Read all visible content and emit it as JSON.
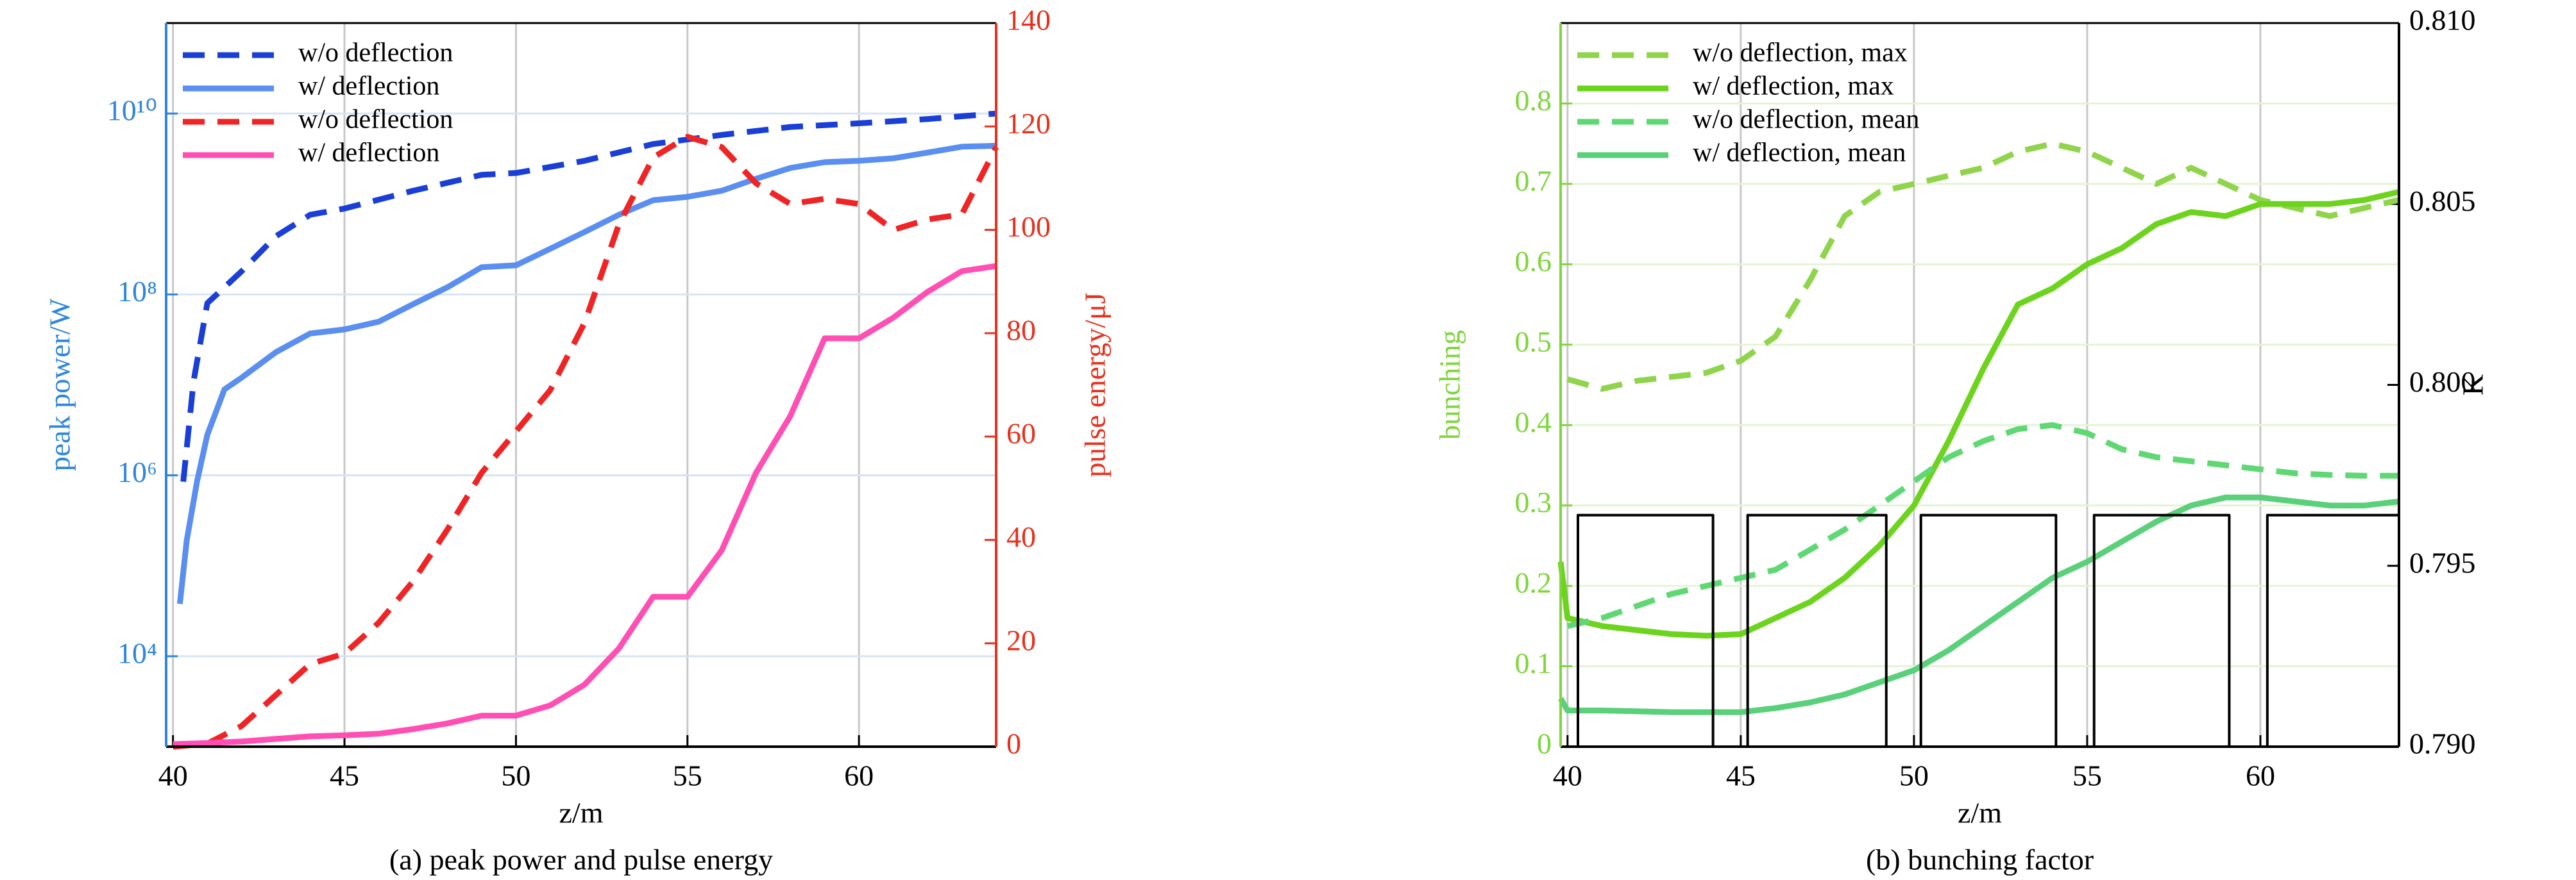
{
  "chart_data": [
    {
      "type": "line",
      "caption": "(a) peak power and pulse energy",
      "xlabel": "z/m",
      "ylabel": "peak power/W",
      "y2label": "pulse energy/μJ",
      "xlim": [
        39.8,
        64
      ],
      "xticks": [
        40,
        45,
        50,
        55,
        60
      ],
      "ylim": [
        1000,
        100000000000
      ],
      "ylog": true,
      "yticks": [
        {
          "value": 10000,
          "label": "10⁴"
        },
        {
          "value": 1000000,
          "label": "10⁶"
        },
        {
          "value": 100000000,
          "label": "10⁸"
        },
        {
          "value": 10000000000,
          "label": "10¹⁰"
        }
      ],
      "y2lim": [
        0,
        140
      ],
      "y2ticks": [
        0,
        20,
        40,
        60,
        80,
        100,
        120,
        140
      ],
      "ycolor": "#2e86de",
      "y2color": "#e8301c",
      "grid": true,
      "gridcolor": "#d6e4f5",
      "legend": "upper left",
      "series": [
        {
          "name": "w/o deflection",
          "color": "#1a3fd6",
          "dashed": true,
          "x": [
            40.3,
            40.6,
            41,
            42,
            43,
            44,
            45,
            47,
            49,
            50,
            52,
            54,
            56,
            58,
            60,
            62,
            64
          ],
          "values": [
            850000,
            11000000,
            80000000,
            180000000,
            440000000,
            760000000,
            890000000,
            1400000000,
            2100000000,
            2200000000,
            3000000000,
            4600000000,
            5800000000,
            7100000000,
            7800000000,
            8700000000,
            10000000000
          ]
        },
        {
          "name": "w/ deflection",
          "color": "#5a8ef0",
          "dashed": false,
          "x": [
            40.2,
            40.4,
            40.7,
            41,
            41.5,
            42,
            43,
            44,
            45,
            46,
            47,
            48,
            49,
            50,
            51,
            52,
            53,
            54,
            55,
            56,
            57,
            58,
            59,
            60,
            61,
            62,
            63,
            64
          ],
          "values": [
            38000,
            190000,
            850000,
            2800000,
            8900000,
            12000000,
            23000000,
            37000000,
            41000000,
            50000000,
            78000000,
            120000000,
            200000000,
            210000000,
            320000000,
            490000000,
            760000000,
            1100000000,
            1200000000,
            1400000000,
            1900000000,
            2500000000,
            2900000000,
            3000000000,
            3200000000,
            3700000000,
            4300000000,
            4400000000
          ]
        },
        {
          "name": "w/o deflection",
          "color": "#f02424",
          "dashed": true,
          "axis": "y2",
          "x": [
            40,
            41,
            42,
            43,
            44,
            45,
            46,
            47,
            48,
            49,
            50,
            51,
            52,
            53,
            54,
            55,
            56,
            57,
            58,
            59,
            60,
            61,
            62,
            63,
            64
          ],
          "values": [
            0,
            0.6,
            4,
            10,
            16,
            18,
            24,
            32,
            42,
            53,
            61,
            69,
            82,
            101,
            114,
            118,
            116,
            109,
            105,
            106,
            105,
            100,
            102,
            103,
            116
          ]
        },
        {
          "name": "w/ deflection",
          "color": "#ff4fb4",
          "dashed": false,
          "axis": "y2",
          "x": [
            40,
            41,
            42,
            43,
            44,
            45,
            46,
            47,
            48,
            49,
            50,
            51,
            52,
            53,
            54,
            55,
            56,
            57,
            58,
            59,
            60,
            61,
            62,
            63,
            64
          ],
          "values": [
            0.5,
            0.7,
            1,
            1.5,
            2,
            2.2,
            2.5,
            3.4,
            4.5,
            6,
            6,
            8,
            12,
            19,
            29,
            29,
            38,
            53,
            64,
            79,
            79,
            83,
            88,
            92,
            93
          ]
        }
      ]
    },
    {
      "type": "line",
      "caption": "(b) bunching factor",
      "xlabel": "z/m",
      "ylabel": "bunching",
      "y2label": "K",
      "xlim": [
        39.8,
        64
      ],
      "xticks": [
        40,
        45,
        50,
        55,
        60
      ],
      "ylim": [
        0,
        0.9
      ],
      "yticks": [
        0,
        0.1,
        0.2,
        0.3,
        0.4,
        0.5,
        0.6,
        0.7,
        0.8
      ],
      "y2lim": [
        0.79,
        0.81
      ],
      "y2ticks": [
        {
          "value": 0.79,
          "label": "0.790"
        },
        {
          "value": 0.795,
          "label": "0.795"
        },
        {
          "value": 0.8,
          "label": "0.800"
        },
        {
          "value": 0.805,
          "label": "0.805"
        },
        {
          "value": 0.81,
          "label": "0.810"
        }
      ],
      "ycolor": "#7ed63a",
      "y2color": "#000000",
      "grid": true,
      "gridcolor": "#e3f5d4",
      "legend": "upper left",
      "series": [
        {
          "name": "w/o deflection, max",
          "color": "#8fd44a",
          "dashed": true,
          "x": [
            40,
            41,
            42,
            43,
            44,
            45,
            46,
            47,
            48,
            49,
            50,
            51,
            52,
            53,
            54,
            55,
            56,
            57,
            58,
            59,
            60,
            61,
            62,
            63,
            64
          ],
          "values": [
            0.457,
            0.445,
            0.455,
            0.46,
            0.465,
            0.48,
            0.51,
            0.58,
            0.66,
            0.69,
            0.7,
            0.71,
            0.72,
            0.74,
            0.75,
            0.74,
            0.72,
            0.7,
            0.72,
            0.7,
            0.68,
            0.67,
            0.66,
            0.67,
            0.68
          ]
        },
        {
          "name": "w/ deflection, max",
          "color": "#6cd41c",
          "dashed": false,
          "x": [
            39.8,
            40,
            41,
            42,
            43,
            44,
            45,
            46,
            47,
            48,
            49,
            50,
            51,
            52,
            53,
            54,
            55,
            56,
            57,
            58,
            59,
            60,
            61,
            62,
            63,
            64
          ],
          "values": [
            0.23,
            0.16,
            0.15,
            0.145,
            0.14,
            0.138,
            0.14,
            0.16,
            0.18,
            0.21,
            0.25,
            0.3,
            0.38,
            0.47,
            0.55,
            0.57,
            0.6,
            0.62,
            0.65,
            0.665,
            0.66,
            0.675,
            0.675,
            0.675,
            0.68,
            0.69
          ]
        },
        {
          "name": "w/o deflection, mean",
          "color": "#5fd873",
          "dashed": true,
          "x": [
            40,
            41,
            42,
            43,
            44,
            45,
            46,
            47,
            48,
            49,
            50,
            51,
            52,
            53,
            54,
            55,
            56,
            57,
            58,
            59,
            60,
            61,
            62,
            63,
            64
          ],
          "values": [
            0.15,
            0.16,
            0.175,
            0.19,
            0.2,
            0.21,
            0.22,
            0.245,
            0.27,
            0.3,
            0.33,
            0.36,
            0.38,
            0.395,
            0.4,
            0.39,
            0.37,
            0.36,
            0.355,
            0.35,
            0.345,
            0.34,
            0.338,
            0.337,
            0.337
          ]
        },
        {
          "name": "w/ deflection, mean",
          "color": "#5ad07a",
          "dashed": false,
          "x": [
            39.8,
            40,
            41,
            42,
            43,
            44,
            45,
            46,
            47,
            48,
            49,
            50,
            51,
            52,
            53,
            54,
            55,
            56,
            57,
            58,
            59,
            60,
            61,
            62,
            63,
            64
          ],
          "values": [
            0.06,
            0.045,
            0.045,
            0.044,
            0.043,
            0.043,
            0.043,
            0.048,
            0.055,
            0.065,
            0.08,
            0.095,
            0.12,
            0.15,
            0.18,
            0.21,
            0.23,
            0.255,
            0.28,
            0.3,
            0.31,
            0.31,
            0.305,
            0.3,
            0.3,
            0.305
          ]
        },
        {
          "color": "#000000",
          "dashed": false,
          "axis": "y2",
          "x": [
            40.3,
            40.3,
            44.2,
            44.2,
            45.2,
            45.2,
            49.2,
            49.2,
            50.2,
            50.2,
            54.1,
            54.1,
            55.2,
            55.2,
            59.1,
            59.1,
            60.2,
            60.2,
            64,
            64
          ],
          "values": [
            0.79,
            0.7964,
            0.7964,
            0.79,
            0.79,
            0.7964,
            0.7964,
            0.79,
            0.79,
            0.7964,
            0.7964,
            0.79,
            0.79,
            0.7964,
            0.7964,
            0.79,
            0.79,
            0.7964,
            0.7964,
            0.79
          ]
        }
      ]
    }
  ]
}
